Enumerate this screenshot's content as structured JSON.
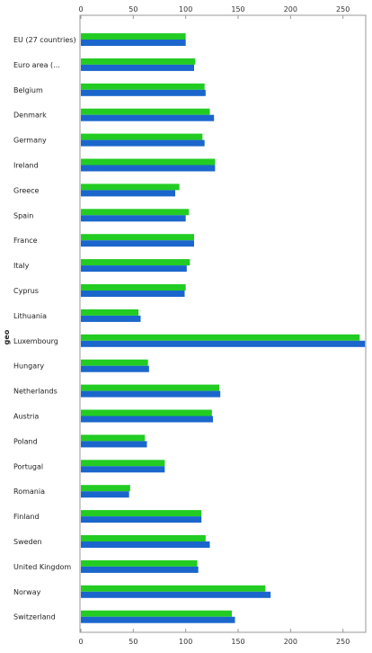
{
  "chart_data": {
    "type": "bar",
    "orientation": "horizontal",
    "ylabel": "geo",
    "xlim": [
      0,
      270
    ],
    "x_ticks": [
      0,
      50,
      100,
      150,
      200,
      250
    ],
    "grid": false,
    "legend": "none",
    "categories": [
      "EU (27 countries)",
      "Euro area (...",
      "Belgium",
      "Denmark",
      "Germany",
      "Ireland",
      "Greece",
      "Spain",
      "France",
      "Italy",
      "Cyprus",
      "Lithuania",
      "Luxembourg",
      "Hungary",
      "Netherlands",
      "Austria",
      "Poland",
      "Portugal",
      "Romania",
      "Finland",
      "Sweden",
      "United Kingdom",
      "Norway",
      "Switzerland"
    ],
    "series": [
      {
        "color": "#22cc22",
        "values": [
          100,
          109,
          118,
          123,
          116,
          128,
          94,
          103,
          108,
          104,
          100,
          55,
          266,
          64,
          132,
          125,
          61,
          80,
          47,
          115,
          119,
          111,
          176,
          144
        ]
      },
      {
        "color": "#1a66cc",
        "values": [
          100,
          108,
          119,
          127,
          118,
          128,
          90,
          100,
          108,
          101,
          99,
          57,
          271,
          65,
          133,
          126,
          63,
          80,
          46,
          115,
          123,
          112,
          181,
          147
        ]
      }
    ]
  }
}
